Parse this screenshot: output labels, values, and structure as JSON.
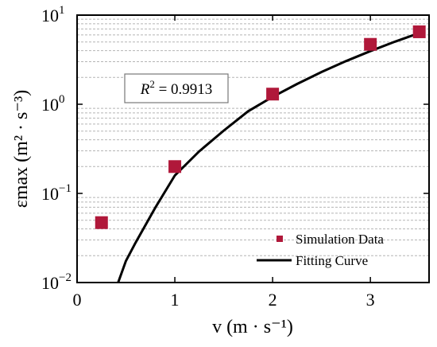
{
  "chart_data": {
    "type": "scatter",
    "xlabel": "v (m · s⁻¹)",
    "ylabel": "εmax (m² · s⁻³)",
    "xlim": [
      0,
      3.6
    ],
    "ylim": [
      0.01,
      10
    ],
    "y_scale": "log",
    "x_ticks": [
      0,
      1,
      2,
      3
    ],
    "x_tick_labels": [
      "0",
      "1",
      "2",
      "3"
    ],
    "y_ticks": [
      0.01,
      0.1,
      1,
      10
    ],
    "y_tick_labels": [
      {
        "base": "10",
        "exp": "−2"
      },
      {
        "base": "10",
        "exp": "−1"
      },
      {
        "base": "10",
        "exp": "0"
      },
      {
        "base": "10",
        "exp": "1"
      }
    ],
    "grid": "y-minor-dashed",
    "series": [
      {
        "name": "Simulation Data",
        "kind": "scatter",
        "marker": "square",
        "color": "#b0183a",
        "x": [
          0.25,
          1,
          2,
          3,
          3.5
        ],
        "y": [
          0.047,
          0.2,
          1.3,
          4.7,
          6.5
        ]
      },
      {
        "name": "Fitting Curve",
        "kind": "line",
        "color": "#000000",
        "x": [
          0.42,
          0.5,
          0.6,
          0.8,
          1.0,
          1.25,
          1.5,
          1.75,
          2.0,
          2.25,
          2.5,
          2.75,
          3.0,
          3.25,
          3.5
        ],
        "y": [
          0.01,
          0.0175,
          0.0282,
          0.069,
          0.159,
          0.297,
          0.506,
          0.835,
          1.21,
          1.69,
          2.3,
          3.05,
          3.95,
          5.03,
          6.3
        ]
      }
    ],
    "legend_position": "bottom-right",
    "annotation": {
      "text": "R² = 0.9913",
      "lhs": "R",
      "exp": "2",
      "rhs": " = 0.9913"
    }
  }
}
